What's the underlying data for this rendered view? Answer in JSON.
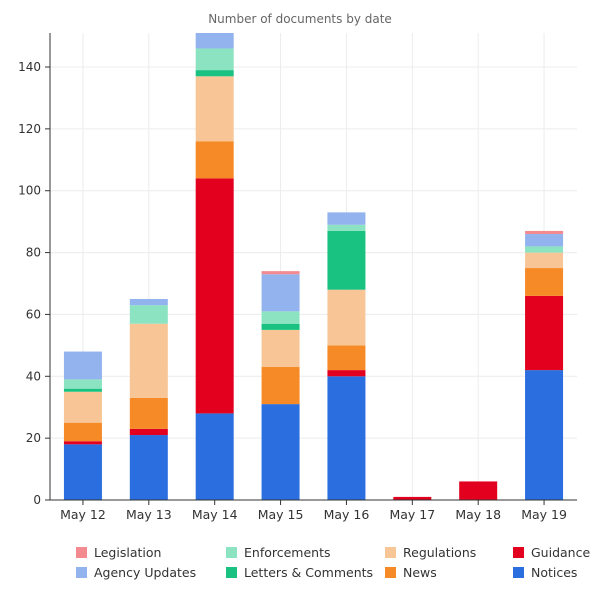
{
  "chart_data": {
    "type": "bar",
    "stacked": true,
    "title": "Number of documents by date",
    "xlabel": "",
    "ylabel": "",
    "categories": [
      "May 12",
      "May 13",
      "May 14",
      "May 15",
      "May 16",
      "May 17",
      "May 18",
      "May 19"
    ],
    "ylim": [
      0,
      151
    ],
    "yticks": [
      0,
      20,
      40,
      60,
      80,
      100,
      120,
      140
    ],
    "grid": true,
    "legend_position": "bottom",
    "series": [
      {
        "name": "Notices",
        "color": "#2a6edf",
        "values": [
          18,
          21,
          28,
          31,
          40,
          0,
          0,
          42
        ]
      },
      {
        "name": "Guidance",
        "color": "#e3001f",
        "values": [
          1,
          2,
          76,
          0,
          2,
          1,
          6,
          24
        ]
      },
      {
        "name": "News",
        "color": "#f58a26",
        "values": [
          6,
          10,
          12,
          12,
          8,
          0,
          0,
          9
        ]
      },
      {
        "name": "Regulations",
        "color": "#f8c696",
        "values": [
          10,
          24,
          21,
          12,
          18,
          0,
          0,
          5
        ]
      },
      {
        "name": "Letters & Comments",
        "color": "#19c281",
        "values": [
          1,
          0,
          2,
          2,
          19,
          0,
          0,
          0
        ]
      },
      {
        "name": "Enforcements",
        "color": "#8be3c2",
        "values": [
          3,
          6,
          7,
          4,
          2,
          0,
          0,
          2
        ]
      },
      {
        "name": "Agency Updates",
        "color": "#93b3ef",
        "values": [
          9,
          2,
          5,
          12,
          4,
          0,
          0,
          4
        ]
      },
      {
        "name": "Legislation",
        "color": "#f28a8f",
        "values": [
          0,
          0,
          0,
          1,
          0,
          0,
          0,
          1
        ]
      }
    ]
  },
  "legend": [
    {
      "label": "Legislation",
      "color": "#f28a8f"
    },
    {
      "label": "Enforcements",
      "color": "#8be3c2"
    },
    {
      "label": "Regulations",
      "color": "#f8c696"
    },
    {
      "label": "Guidance",
      "color": "#e3001f"
    },
    {
      "label": "Agency Updates",
      "color": "#93b3ef"
    },
    {
      "label": "Letters & Comments",
      "color": "#19c281"
    },
    {
      "label": "News",
      "color": "#f58a26"
    },
    {
      "label": "Notices",
      "color": "#2a6edf"
    }
  ]
}
